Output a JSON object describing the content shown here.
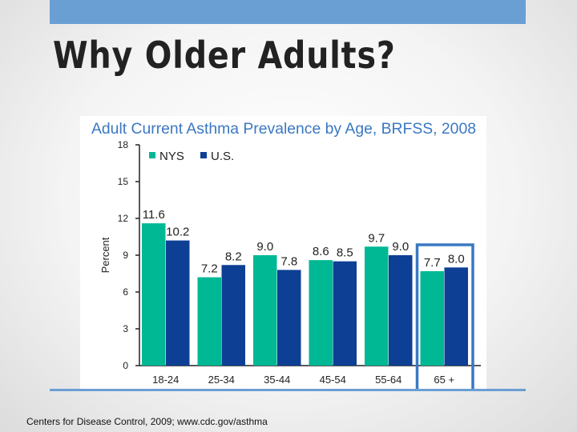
{
  "slide": {
    "title": "Why Older Adults?",
    "footer": "Centers for Disease Control, 2009; www.cdc.gov/asthma"
  },
  "colors": {
    "accent_bar": "#6a9fd4",
    "nys": "#00b894",
    "us": "#0d3f94",
    "chart_title": "#3a78c2",
    "highlight_box": "#3a78c2"
  },
  "chart_data": {
    "type": "bar",
    "title": "Adult Current Asthma Prevalence by Age, BRFSS, 2008",
    "xlabel": "",
    "ylabel": "Percent",
    "ylim": [
      0,
      18
    ],
    "yticks": [
      "0",
      "3",
      "6",
      "9",
      "12",
      "15",
      "18"
    ],
    "grid": false,
    "legend_position": "top-left",
    "categories": [
      "18-24",
      "25-34",
      "35-44",
      "45-54",
      "55-64",
      "65 +"
    ],
    "series": [
      {
        "name": "NYS",
        "values": [
          11.6,
          7.2,
          9.0,
          8.6,
          9.7,
          7.7
        ],
        "labels": [
          "11.6",
          "7.2",
          "9.0",
          "8.6",
          "9.7",
          "7.7"
        ]
      },
      {
        "name": "U.S.",
        "values": [
          10.2,
          8.2,
          7.8,
          8.5,
          9.0,
          8.0
        ],
        "labels": [
          "10.2",
          "8.2",
          "7.8",
          "8.5",
          "9.0",
          "8.0"
        ]
      }
    ],
    "highlighted_category": "65 +"
  }
}
